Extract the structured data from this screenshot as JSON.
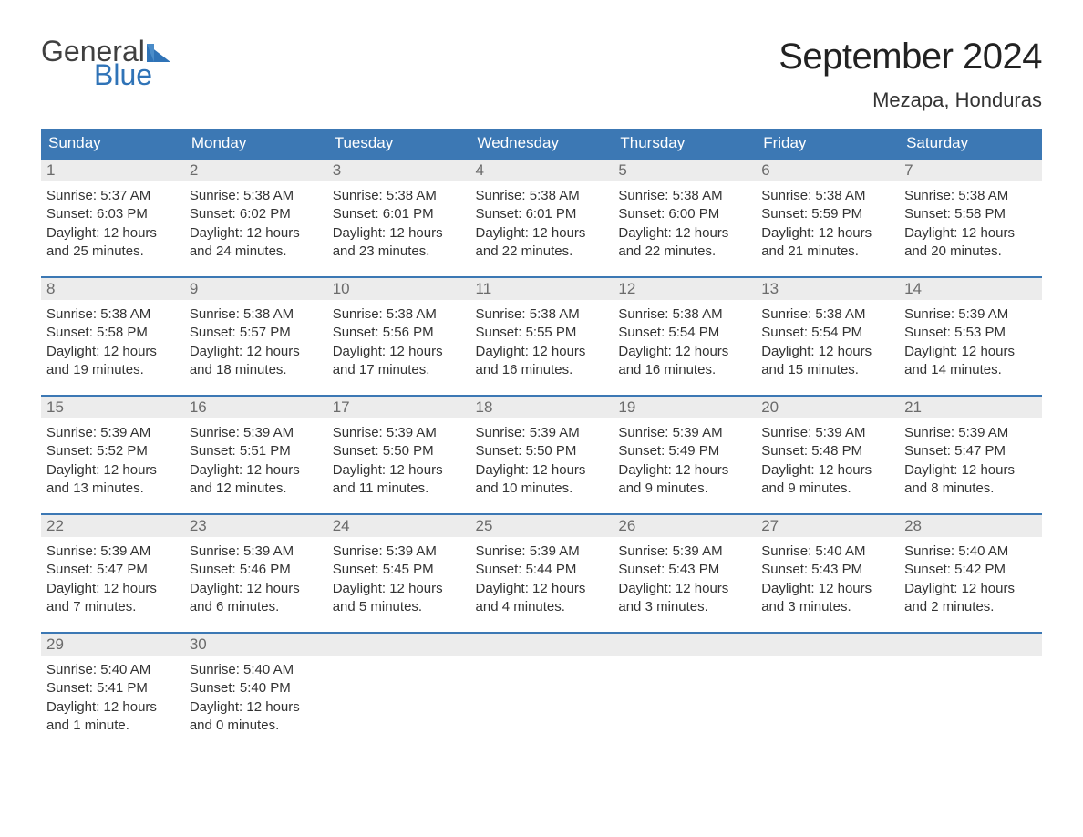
{
  "logo": {
    "general": "General",
    "blue": "Blue"
  },
  "title": "September 2024",
  "location": "Mezapa, Honduras",
  "colors": {
    "header_bg": "#3c78b4",
    "header_text": "#ffffff",
    "daybar_bg": "#ececec",
    "daybar_text": "#6b6b6b",
    "body_text": "#333333",
    "accent_blue": "#2f73b7",
    "logo_gray": "#404040"
  },
  "day_headers": [
    "Sunday",
    "Monday",
    "Tuesday",
    "Wednesday",
    "Thursday",
    "Friday",
    "Saturday"
  ],
  "weeks": [
    [
      {
        "n": "1",
        "sunrise": "Sunrise: 5:37 AM",
        "sunset": "Sunset: 6:03 PM",
        "d1": "Daylight: 12 hours",
        "d2": "and 25 minutes."
      },
      {
        "n": "2",
        "sunrise": "Sunrise: 5:38 AM",
        "sunset": "Sunset: 6:02 PM",
        "d1": "Daylight: 12 hours",
        "d2": "and 24 minutes."
      },
      {
        "n": "3",
        "sunrise": "Sunrise: 5:38 AM",
        "sunset": "Sunset: 6:01 PM",
        "d1": "Daylight: 12 hours",
        "d2": "and 23 minutes."
      },
      {
        "n": "4",
        "sunrise": "Sunrise: 5:38 AM",
        "sunset": "Sunset: 6:01 PM",
        "d1": "Daylight: 12 hours",
        "d2": "and 22 minutes."
      },
      {
        "n": "5",
        "sunrise": "Sunrise: 5:38 AM",
        "sunset": "Sunset: 6:00 PM",
        "d1": "Daylight: 12 hours",
        "d2": "and 22 minutes."
      },
      {
        "n": "6",
        "sunrise": "Sunrise: 5:38 AM",
        "sunset": "Sunset: 5:59 PM",
        "d1": "Daylight: 12 hours",
        "d2": "and 21 minutes."
      },
      {
        "n": "7",
        "sunrise": "Sunrise: 5:38 AM",
        "sunset": "Sunset: 5:58 PM",
        "d1": "Daylight: 12 hours",
        "d2": "and 20 minutes."
      }
    ],
    [
      {
        "n": "8",
        "sunrise": "Sunrise: 5:38 AM",
        "sunset": "Sunset: 5:58 PM",
        "d1": "Daylight: 12 hours",
        "d2": "and 19 minutes."
      },
      {
        "n": "9",
        "sunrise": "Sunrise: 5:38 AM",
        "sunset": "Sunset: 5:57 PM",
        "d1": "Daylight: 12 hours",
        "d2": "and 18 minutes."
      },
      {
        "n": "10",
        "sunrise": "Sunrise: 5:38 AM",
        "sunset": "Sunset: 5:56 PM",
        "d1": "Daylight: 12 hours",
        "d2": "and 17 minutes."
      },
      {
        "n": "11",
        "sunrise": "Sunrise: 5:38 AM",
        "sunset": "Sunset: 5:55 PM",
        "d1": "Daylight: 12 hours",
        "d2": "and 16 minutes."
      },
      {
        "n": "12",
        "sunrise": "Sunrise: 5:38 AM",
        "sunset": "Sunset: 5:54 PM",
        "d1": "Daylight: 12 hours",
        "d2": "and 16 minutes."
      },
      {
        "n": "13",
        "sunrise": "Sunrise: 5:38 AM",
        "sunset": "Sunset: 5:54 PM",
        "d1": "Daylight: 12 hours",
        "d2": "and 15 minutes."
      },
      {
        "n": "14",
        "sunrise": "Sunrise: 5:39 AM",
        "sunset": "Sunset: 5:53 PM",
        "d1": "Daylight: 12 hours",
        "d2": "and 14 minutes."
      }
    ],
    [
      {
        "n": "15",
        "sunrise": "Sunrise: 5:39 AM",
        "sunset": "Sunset: 5:52 PM",
        "d1": "Daylight: 12 hours",
        "d2": "and 13 minutes."
      },
      {
        "n": "16",
        "sunrise": "Sunrise: 5:39 AM",
        "sunset": "Sunset: 5:51 PM",
        "d1": "Daylight: 12 hours",
        "d2": "and 12 minutes."
      },
      {
        "n": "17",
        "sunrise": "Sunrise: 5:39 AM",
        "sunset": "Sunset: 5:50 PM",
        "d1": "Daylight: 12 hours",
        "d2": "and 11 minutes."
      },
      {
        "n": "18",
        "sunrise": "Sunrise: 5:39 AM",
        "sunset": "Sunset: 5:50 PM",
        "d1": "Daylight: 12 hours",
        "d2": "and 10 minutes."
      },
      {
        "n": "19",
        "sunrise": "Sunrise: 5:39 AM",
        "sunset": "Sunset: 5:49 PM",
        "d1": "Daylight: 12 hours",
        "d2": "and 9 minutes."
      },
      {
        "n": "20",
        "sunrise": "Sunrise: 5:39 AM",
        "sunset": "Sunset: 5:48 PM",
        "d1": "Daylight: 12 hours",
        "d2": "and 9 minutes."
      },
      {
        "n": "21",
        "sunrise": "Sunrise: 5:39 AM",
        "sunset": "Sunset: 5:47 PM",
        "d1": "Daylight: 12 hours",
        "d2": "and 8 minutes."
      }
    ],
    [
      {
        "n": "22",
        "sunrise": "Sunrise: 5:39 AM",
        "sunset": "Sunset: 5:47 PM",
        "d1": "Daylight: 12 hours",
        "d2": "and 7 minutes."
      },
      {
        "n": "23",
        "sunrise": "Sunrise: 5:39 AM",
        "sunset": "Sunset: 5:46 PM",
        "d1": "Daylight: 12 hours",
        "d2": "and 6 minutes."
      },
      {
        "n": "24",
        "sunrise": "Sunrise: 5:39 AM",
        "sunset": "Sunset: 5:45 PM",
        "d1": "Daylight: 12 hours",
        "d2": "and 5 minutes."
      },
      {
        "n": "25",
        "sunrise": "Sunrise: 5:39 AM",
        "sunset": "Sunset: 5:44 PM",
        "d1": "Daylight: 12 hours",
        "d2": "and 4 minutes."
      },
      {
        "n": "26",
        "sunrise": "Sunrise: 5:39 AM",
        "sunset": "Sunset: 5:43 PM",
        "d1": "Daylight: 12 hours",
        "d2": "and 3 minutes."
      },
      {
        "n": "27",
        "sunrise": "Sunrise: 5:40 AM",
        "sunset": "Sunset: 5:43 PM",
        "d1": "Daylight: 12 hours",
        "d2": "and 3 minutes."
      },
      {
        "n": "28",
        "sunrise": "Sunrise: 5:40 AM",
        "sunset": "Sunset: 5:42 PM",
        "d1": "Daylight: 12 hours",
        "d2": "and 2 minutes."
      }
    ],
    [
      {
        "n": "29",
        "sunrise": "Sunrise: 5:40 AM",
        "sunset": "Sunset: 5:41 PM",
        "d1": "Daylight: 12 hours",
        "d2": "and 1 minute."
      },
      {
        "n": "30",
        "sunrise": "Sunrise: 5:40 AM",
        "sunset": "Sunset: 5:40 PM",
        "d1": "Daylight: 12 hours",
        "d2": "and 0 minutes."
      },
      null,
      null,
      null,
      null,
      null
    ]
  ]
}
